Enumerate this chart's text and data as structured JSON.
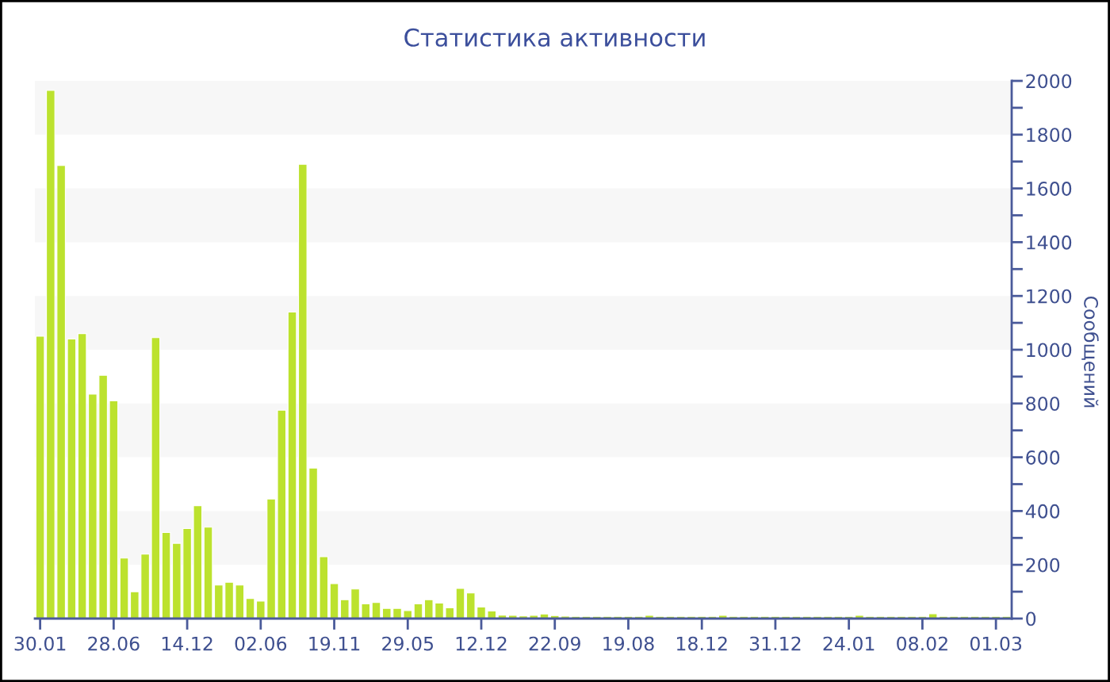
{
  "chart_data": {
    "type": "bar",
    "title": "Статистика активности",
    "ylabel": "Сообщений",
    "categories": [
      "30.01",
      null,
      null,
      null,
      null,
      null,
      null,
      "28.06",
      null,
      null,
      null,
      null,
      null,
      null,
      "14.12",
      null,
      null,
      null,
      null,
      null,
      null,
      "02.06",
      null,
      null,
      null,
      null,
      null,
      null,
      "19.11",
      null,
      null,
      null,
      null,
      null,
      null,
      "29.05",
      null,
      null,
      null,
      null,
      null,
      null,
      "12.12",
      null,
      null,
      null,
      null,
      null,
      null,
      "22.09",
      null,
      null,
      null,
      null,
      null,
      null,
      "19.08",
      null,
      null,
      null,
      null,
      null,
      null,
      "18.12",
      null,
      null,
      null,
      null,
      null,
      null,
      "31.12",
      null,
      null,
      null,
      null,
      null,
      null,
      "24.01",
      null,
      null,
      null,
      null,
      null,
      null,
      "08.02",
      null,
      null,
      null,
      null,
      null,
      null,
      "01.03",
      null
    ],
    "values": [
      1050,
      1965,
      1685,
      1040,
      1060,
      835,
      905,
      810,
      225,
      100,
      240,
      1045,
      320,
      280,
      335,
      420,
      340,
      125,
      135,
      125,
      75,
      65,
      445,
      775,
      1140,
      1690,
      560,
      230,
      130,
      70,
      110,
      55,
      60,
      38,
      38,
      30,
      55,
      70,
      58,
      40,
      112,
      95,
      43,
      28,
      13,
      12,
      10,
      12,
      17,
      11,
      9,
      8,
      8,
      8,
      8,
      8,
      8,
      8,
      12,
      8,
      8,
      8,
      8,
      8,
      8,
      12,
      8,
      8,
      8,
      8,
      8,
      8,
      8,
      8,
      8,
      8,
      8,
      8,
      12,
      8,
      8,
      8,
      8,
      8,
      8,
      18,
      8,
      8,
      8,
      8,
      8,
      8,
      8
    ],
    "color": "#bce22e",
    "ylim": [
      0,
      2000
    ],
    "yticks": [
      0,
      {
        "value": 100,
        "label": null
      },
      200,
      {
        "value": 300,
        "label": null
      },
      400,
      {
        "value": 500,
        "label": null
      },
      600,
      {
        "value": 700,
        "label": null
      },
      800,
      {
        "value": 900,
        "label": null
      },
      1000,
      {
        "value": 1100,
        "label": null
      },
      1200,
      {
        "value": 1300,
        "label": null
      },
      1400,
      {
        "value": 1500,
        "label": null
      },
      1600,
      {
        "value": 1700,
        "label": null
      },
      1800,
      {
        "value": 1900,
        "label": null
      },
      2000
    ],
    "bands": [
      {
        "axis": "y",
        "from": 200,
        "to": 400,
        "color": "#f7f7f7"
      },
      {
        "axis": "y",
        "from": 600,
        "to": 800,
        "color": "#f7f7f7"
      },
      {
        "axis": "y",
        "from": 1000,
        "to": 1200,
        "color": "#f7f7f7"
      },
      {
        "axis": "y",
        "from": 1400,
        "to": 1600,
        "color": "#f7f7f7"
      },
      {
        "axis": "y",
        "from": 1800,
        "to": 2000,
        "color": "#f7f7f7"
      }
    ]
  }
}
